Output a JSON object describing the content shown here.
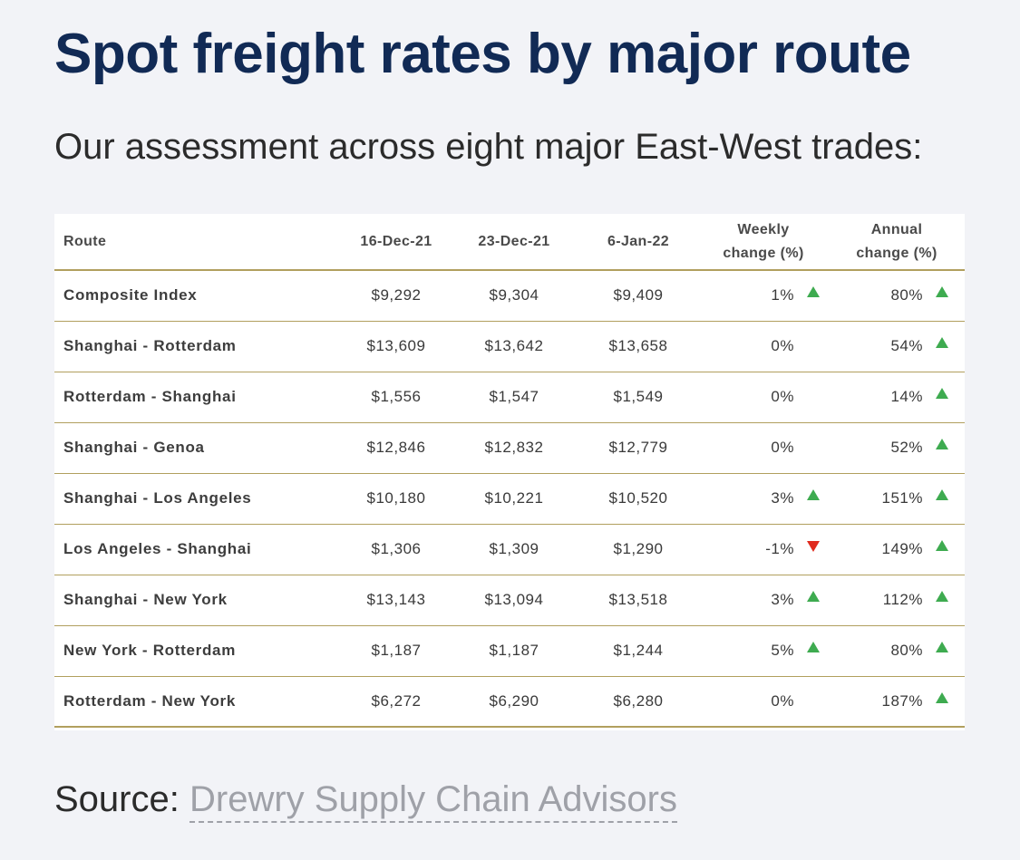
{
  "title": "Spot freight rates by major route",
  "subtitle": "Our assessment across eight major East-West trades:",
  "table": {
    "headers": {
      "route": "Route",
      "d1": "16-Dec-21",
      "d2": "23-Dec-21",
      "d3": "6-Jan-22",
      "weekly_line1": "Weekly",
      "weekly_line2": "change (%)",
      "annual_line1": "Annual",
      "annual_line2": "change (%)"
    },
    "rows": [
      {
        "route": "Composite Index",
        "d1": "$9,292",
        "d2": "$9,304",
        "d3": "$9,409",
        "weekly": "1%",
        "weekly_trend": "up",
        "annual": "80%",
        "annual_trend": "up"
      },
      {
        "route": "Shanghai - Rotterdam",
        "d1": "$13,609",
        "d2": "$13,642",
        "d3": "$13,658",
        "weekly": "0%",
        "weekly_trend": "none",
        "annual": "54%",
        "annual_trend": "up"
      },
      {
        "route": "Rotterdam - Shanghai",
        "d1": "$1,556",
        "d2": "$1,547",
        "d3": "$1,549",
        "weekly": "0%",
        "weekly_trend": "none",
        "annual": "14%",
        "annual_trend": "up"
      },
      {
        "route": "Shanghai - Genoa",
        "d1": "$12,846",
        "d2": "$12,832",
        "d3": "$12,779",
        "weekly": "0%",
        "weekly_trend": "none",
        "annual": "52%",
        "annual_trend": "up"
      },
      {
        "route": "Shanghai - Los Angeles",
        "d1": "$10,180",
        "d2": "$10,221",
        "d3": "$10,520",
        "weekly": "3%",
        "weekly_trend": "up",
        "annual": "151%",
        "annual_trend": "up"
      },
      {
        "route": "Los Angeles - Shanghai",
        "d1": "$1,306",
        "d2": "$1,309",
        "d3": "$1,290",
        "weekly": "-1%",
        "weekly_trend": "down",
        "annual": "149%",
        "annual_trend": "up"
      },
      {
        "route": "Shanghai - New York",
        "d1": "$13,143",
        "d2": "$13,094",
        "d3": "$13,518",
        "weekly": "3%",
        "weekly_trend": "up",
        "annual": "112%",
        "annual_trend": "up"
      },
      {
        "route": "New York - Rotterdam",
        "d1": "$1,187",
        "d2": "$1,187",
        "d3": "$1,244",
        "weekly": "5%",
        "weekly_trend": "up",
        "annual": "80%",
        "annual_trend": "up"
      },
      {
        "route": "Rotterdam - New York",
        "d1": "$6,272",
        "d2": "$6,290",
        "d3": "$6,280",
        "weekly": "0%",
        "weekly_trend": "none",
        "annual": "187%",
        "annual_trend": "up"
      }
    ]
  },
  "source": {
    "label": "Source:",
    "link_text": "Drewry Supply Chain Advisors"
  },
  "colors": {
    "title": "#112a55",
    "rule": "#b19f5e",
    "up_arrow": "#3eab50",
    "down_arrow": "#e02b1e",
    "link": "#9fa1a8"
  }
}
